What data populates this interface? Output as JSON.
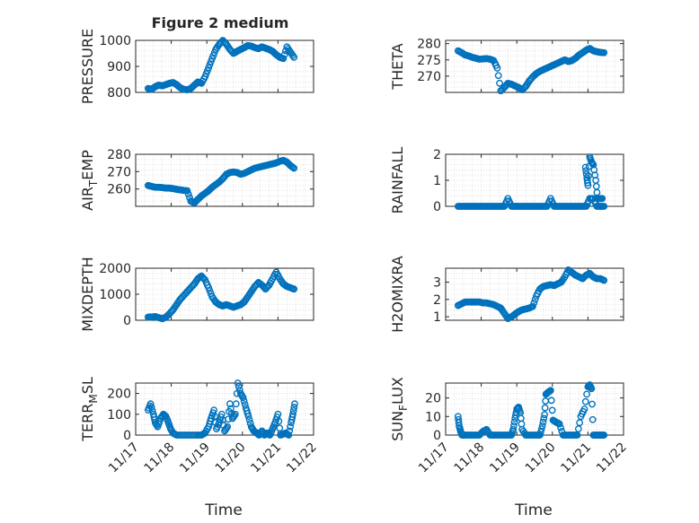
{
  "figure_title": "Figure 2 medium",
  "marker_color": "#0072BD",
  "chart_data": [
    {
      "type": "scatter",
      "ylabel": "PRESSURE",
      "ylim": [
        800,
        1000
      ],
      "yticks": [
        "800",
        "900",
        "1000"
      ],
      "xlim_days": [
        17,
        22
      ],
      "xtick_labels": [
        "11/17",
        "11/18",
        "11/19",
        "11/20",
        "11/21",
        "11/22"
      ],
      "grid": true,
      "series": [
        {
          "x": [
            17.35,
            17.45,
            17.55,
            17.65,
            17.75,
            17.85,
            17.95,
            18.05,
            18.15,
            18.25,
            18.35,
            18.45,
            18.55,
            18.65,
            18.75,
            18.85,
            18.95,
            19.05,
            19.15,
            19.25,
            19.35,
            19.45,
            19.55,
            19.65,
            19.75,
            19.85,
            19.95,
            20.05,
            20.15,
            20.25,
            20.35,
            20.45,
            20.55,
            20.65,
            20.75,
            20.85,
            20.95,
            21.05,
            21.15,
            21.25,
            21.35,
            21.45
          ],
          "y": [
            815,
            812,
            822,
            828,
            825,
            830,
            835,
            838,
            830,
            818,
            812,
            810,
            815,
            828,
            840,
            835,
            860,
            895,
            930,
            965,
            985,
            1000,
            985,
            965,
            950,
            958,
            965,
            972,
            980,
            978,
            972,
            968,
            975,
            970,
            965,
            958,
            945,
            935,
            930,
            975,
            955,
            935
          ]
        }
      ]
    },
    {
      "type": "scatter",
      "ylabel": "THETA",
      "ylim": [
        265,
        281
      ],
      "yticks": [
        "270",
        "275",
        "280"
      ],
      "xlim_days": [
        17,
        22
      ],
      "xtick_labels": [
        "11/17",
        "11/18",
        "11/19",
        "11/20",
        "11/21",
        "11/22"
      ],
      "grid": true,
      "series": [
        {
          "x": [
            17.35,
            17.45,
            17.55,
            17.65,
            17.75,
            17.85,
            17.95,
            18.05,
            18.15,
            18.25,
            18.35,
            18.45,
            18.55,
            18.65,
            18.75,
            18.85,
            18.95,
            19.05,
            19.15,
            19.25,
            19.35,
            19.45,
            19.55,
            19.65,
            19.75,
            19.85,
            19.95,
            20.05,
            20.15,
            20.25,
            20.35,
            20.45,
            20.55,
            20.65,
            20.75,
            20.85,
            20.95,
            21.05,
            21.15,
            21.25,
            21.35,
            21.45
          ],
          "y": [
            277.8,
            277.2,
            276.5,
            276.2,
            275.8,
            275.5,
            275.2,
            275.3,
            275.4,
            275.2,
            274.8,
            272.5,
            265.5,
            266.5,
            267.8,
            267.5,
            267.0,
            266.5,
            265.8,
            266.8,
            268.5,
            269.8,
            270.8,
            271.5,
            272.0,
            272.5,
            273.0,
            273.5,
            274.0,
            274.5,
            275.0,
            274.5,
            274.8,
            275.5,
            276.5,
            277.2,
            278.0,
            278.5,
            277.8,
            277.5,
            277.3,
            277.2
          ]
        }
      ]
    },
    {
      "type": "scatter",
      "ylabel": "AIR_TEMP",
      "ylim": [
        250,
        280
      ],
      "yticks": [
        "260",
        "270",
        "280"
      ],
      "xlim_days": [
        17,
        22
      ],
      "xtick_labels": [
        "11/17",
        "11/18",
        "11/19",
        "11/20",
        "11/21",
        "11/22"
      ],
      "grid": true,
      "series": [
        {
          "x": [
            17.35,
            17.45,
            17.55,
            17.65,
            17.75,
            17.85,
            17.95,
            18.05,
            18.15,
            18.25,
            18.35,
            18.45,
            18.55,
            18.65,
            18.75,
            18.85,
            18.95,
            19.05,
            19.15,
            19.25,
            19.35,
            19.45,
            19.55,
            19.65,
            19.75,
            19.85,
            19.95,
            20.05,
            20.15,
            20.25,
            20.35,
            20.45,
            20.55,
            20.65,
            20.75,
            20.85,
            20.95,
            21.05,
            21.15,
            21.25,
            21.35,
            21.45
          ],
          "y": [
            262,
            261.5,
            261,
            261,
            260.8,
            260.5,
            260.5,
            260.2,
            259.8,
            259.5,
            259.2,
            259,
            253,
            252,
            254,
            256,
            257.5,
            259,
            261,
            262.5,
            264,
            266,
            268.5,
            269.5,
            269.8,
            269.5,
            268.5,
            269,
            270,
            271,
            272,
            272.5,
            273,
            273.5,
            274,
            274.5,
            275,
            276,
            276.5,
            275.5,
            273.5,
            272
          ]
        }
      ]
    },
    {
      "type": "scatter",
      "ylabel": "RAINFALL",
      "ylim": [
        0,
        2
      ],
      "yticks": [
        "0",
        "1",
        "2"
      ],
      "xlim_days": [
        17,
        22
      ],
      "xtick_labels": [
        "11/17",
        "11/18",
        "11/19",
        "11/20",
        "11/21",
        "11/22"
      ],
      "grid": true,
      "series": [
        {
          "x": [
            17.35,
            17.45,
            17.55,
            17.65,
            17.75,
            17.85,
            17.95,
            18.05,
            18.15,
            18.25,
            18.35,
            18.45,
            18.55,
            18.65,
            18.75,
            18.85,
            18.95,
            19.05,
            19.15,
            19.25,
            19.35,
            19.45,
            19.55,
            19.65,
            19.75,
            19.85,
            19.95,
            20.05,
            20.15,
            20.25,
            20.35,
            20.45,
            20.55,
            20.65,
            20.75,
            20.85,
            20.95,
            21.05,
            21.15,
            21.25,
            21.35,
            21.45,
            20.93,
            20.97,
            21.0,
            21.05,
            21.1,
            21.15,
            21.22,
            21.27,
            21.32,
            21.4
          ],
          "y": [
            0,
            0,
            0,
            0,
            0,
            0,
            0,
            0,
            0,
            0,
            0,
            0,
            0,
            0,
            0.3,
            0,
            0,
            0,
            0,
            0,
            0,
            0,
            0,
            0,
            0,
            0,
            0.3,
            0,
            0,
            0,
            0,
            0,
            0,
            0,
            0,
            0,
            0,
            0.3,
            0.3,
            0,
            0,
            0,
            1.5,
            1.1,
            0.8,
            1.9,
            1.7,
            1.6,
            1.0,
            0.3,
            0.3,
            0.3
          ]
        }
      ]
    },
    {
      "type": "scatter",
      "ylabel": "MIXDEPTH",
      "ylim": [
        0,
        2000
      ],
      "yticks": [
        "0",
        "1000",
        "2000"
      ],
      "xlim_days": [
        17,
        22
      ],
      "xtick_labels": [
        "11/17",
        "11/18",
        "11/19",
        "11/20",
        "11/21",
        "11/22"
      ],
      "grid": true,
      "series": [
        {
          "x": [
            17.35,
            17.45,
            17.55,
            17.65,
            17.75,
            17.85,
            17.95,
            18.05,
            18.15,
            18.25,
            18.35,
            18.45,
            18.55,
            18.65,
            18.75,
            18.85,
            18.95,
            19.05,
            19.15,
            19.25,
            19.35,
            19.45,
            19.55,
            19.65,
            19.75,
            19.85,
            19.95,
            20.05,
            20.15,
            20.25,
            20.35,
            20.45,
            20.55,
            20.65,
            20.75,
            20.85,
            20.95,
            21.05,
            21.15,
            21.25,
            21.35,
            21.45
          ],
          "y": [
            120,
            130,
            140,
            100,
            60,
            120,
            250,
            400,
            600,
            800,
            950,
            1100,
            1250,
            1400,
            1600,
            1700,
            1550,
            1250,
            900,
            700,
            600,
            550,
            600,
            550,
            500,
            550,
            600,
            700,
            900,
            1100,
            1300,
            1450,
            1350,
            1200,
            1350,
            1600,
            1850,
            1600,
            1400,
            1300,
            1250,
            1200
          ]
        }
      ]
    },
    {
      "type": "scatter",
      "ylabel": "H2OMIXRA",
      "ylim": [
        0.8,
        3.8
      ],
      "yticks": [
        "1",
        "2",
        "3"
      ],
      "xlim_days": [
        17,
        22
      ],
      "xtick_labels": [
        "11/17",
        "11/18",
        "11/19",
        "11/20",
        "11/21",
        "11/22"
      ],
      "grid": true,
      "series": [
        {
          "x": [
            17.35,
            17.45,
            17.55,
            17.65,
            17.75,
            17.85,
            17.95,
            18.05,
            18.15,
            18.25,
            18.35,
            18.45,
            18.55,
            18.65,
            18.75,
            18.85,
            18.95,
            19.05,
            19.15,
            19.25,
            19.35,
            19.45,
            19.55,
            19.65,
            19.75,
            19.85,
            19.95,
            20.05,
            20.15,
            20.25,
            20.35,
            20.45,
            20.55,
            20.65,
            20.75,
            20.85,
            20.95,
            21.05,
            21.15,
            21.25,
            21.35,
            21.45
          ],
          "y": [
            1.65,
            1.75,
            1.85,
            1.85,
            1.85,
            1.85,
            1.85,
            1.8,
            1.8,
            1.75,
            1.7,
            1.6,
            1.5,
            1.2,
            0.9,
            1.0,
            1.15,
            1.3,
            1.4,
            1.45,
            1.5,
            1.6,
            2.2,
            2.6,
            2.75,
            2.8,
            2.85,
            2.8,
            2.9,
            3.0,
            3.3,
            3.7,
            3.55,
            3.4,
            3.3,
            3.2,
            3.4,
            3.5,
            3.3,
            3.2,
            3.2,
            3.1
          ]
        }
      ]
    },
    {
      "type": "scatter",
      "ylabel": "TERR_MSL",
      "ylim": [
        0,
        250
      ],
      "yticks": [
        "0",
        "100",
        "200"
      ],
      "xlim_days": [
        17,
        22
      ],
      "xtick_labels": [
        "11/17",
        "11/18",
        "11/19",
        "11/20",
        "11/21",
        "11/22"
      ],
      "grid": true,
      "series": [
        {
          "x": [
            17.35,
            17.42,
            17.5,
            17.55,
            17.62,
            17.7,
            17.78,
            17.85,
            17.92,
            17.98,
            18.05,
            18.15,
            18.3,
            18.45,
            18.6,
            18.75,
            18.85,
            18.95,
            19.05,
            19.12,
            19.2,
            19.27,
            19.35,
            19.42,
            19.5,
            19.58,
            19.65,
            19.72,
            19.8,
            19.87,
            19.95,
            20.02,
            20.1,
            20.17,
            20.25,
            20.32,
            20.4,
            20.47,
            20.55,
            20.62,
            20.7,
            20.77,
            20.85,
            20.92,
            21.0,
            21.07,
            21.15,
            21.22,
            21.3,
            21.37,
            21.42,
            21.47
          ],
          "y": [
            120,
            150,
            100,
            60,
            40,
            80,
            100,
            90,
            60,
            30,
            10,
            0,
            0,
            0,
            0,
            0,
            0,
            10,
            40,
            80,
            120,
            30,
            60,
            100,
            20,
            40,
            150,
            80,
            100,
            250,
            200,
            180,
            130,
            90,
            40,
            20,
            10,
            0,
            20,
            0,
            10,
            0,
            30,
            60,
            100,
            0,
            5,
            10,
            0,
            60,
            100,
            150
          ]
        }
      ]
    },
    {
      "type": "scatter",
      "ylabel": "SUN_FLUX",
      "ylim": [
        0,
        28
      ],
      "yticks": [
        "0",
        "10",
        "20"
      ],
      "xlim_days": [
        17,
        22
      ],
      "xtick_labels": [
        "11/17",
        "11/18",
        "11/19",
        "11/20",
        "11/21",
        "11/22"
      ],
      "grid": true,
      "series": [
        {
          "x": [
            17.35,
            17.38,
            17.42,
            17.46,
            17.5,
            17.55,
            17.65,
            17.75,
            17.85,
            17.95,
            18.05,
            18.15,
            18.25,
            18.35,
            18.45,
            18.55,
            18.65,
            18.75,
            18.85,
            18.9,
            18.95,
            19.0,
            19.05,
            19.1,
            19.15,
            19.25,
            19.35,
            19.45,
            19.55,
            19.65,
            19.72,
            19.78,
            19.82,
            19.88,
            19.95,
            20.02,
            20.1,
            20.2,
            20.3,
            20.4,
            20.5,
            20.6,
            20.7,
            20.8,
            20.9,
            21.0,
            21.05,
            21.1,
            21.15,
            21.2,
            21.25,
            21.3,
            21.35,
            21.4,
            21.45
          ],
          "y": [
            10,
            5,
            2,
            0,
            0,
            0,
            0,
            0,
            0,
            0,
            2,
            3,
            0,
            0,
            0,
            0,
            0,
            0,
            0,
            3,
            9,
            14,
            15,
            12,
            3,
            0,
            0,
            0,
            0,
            0,
            5,
            11,
            22,
            23,
            24,
            8,
            7,
            6,
            0,
            0,
            0,
            0,
            0,
            10,
            14,
            26,
            27,
            25,
            0,
            0,
            0,
            0,
            0,
            0,
            0
          ]
        }
      ]
    }
  ],
  "xlabels": [
    "Time",
    "Time"
  ]
}
